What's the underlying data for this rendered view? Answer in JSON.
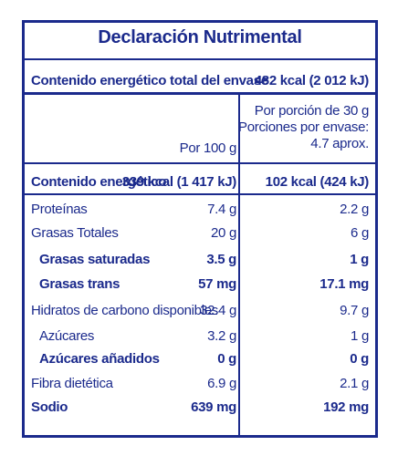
{
  "title": "Declaración Nutrimental",
  "total_energy": {
    "label": "Contenido energético total del envase",
    "value": "482 kcal (2 012 kJ)"
  },
  "header": {
    "per_100g": "Por 100 g",
    "per_portion_1": "Por porción de 30 g",
    "per_portion_2": "Porciones por envase:",
    "per_portion_3": "4.7 aprox."
  },
  "energy_row": {
    "label": "Contenido energético",
    "per_100g": "339 kcal (1 417 kJ)",
    "per_portion": "102 kcal (424 kJ)"
  },
  "rows": [
    {
      "label": "Proteínas",
      "per_100g": "7.4 g",
      "per_portion": "2.2 g"
    },
    {
      "label": "Grasas Totales",
      "per_100g": "20 g",
      "per_portion": "6 g"
    },
    {
      "label": "Grasas saturadas",
      "per_100g": "3.5 g",
      "per_portion": "1 g"
    },
    {
      "label": "Grasas trans",
      "per_100g": "57 mg",
      "per_portion": "17.1 mg"
    },
    {
      "label": "Hidratos de carbono disponibles",
      "per_100g": "32.4 g",
      "per_portion": "9.7 g"
    },
    {
      "label": "Azúcares",
      "per_100g": "3.2 g",
      "per_portion": "1 g"
    },
    {
      "label": "Azúcares añadidos",
      "per_100g": "0 g",
      "per_portion": "0 g"
    },
    {
      "label": "Fibra dietética",
      "per_100g": "6.9 g",
      "per_portion": "2.1 g"
    },
    {
      "label": "Sodio",
      "per_100g": "639 mg",
      "per_portion": "192 mg"
    }
  ]
}
